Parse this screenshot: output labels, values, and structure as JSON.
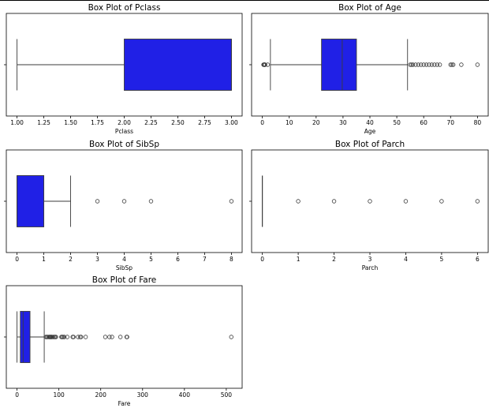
{
  "chart_data": [
    {
      "type": "boxplot",
      "title": "Box Plot of Pclass",
      "xlabel": "Pclass",
      "xlim": [
        0.9,
        3.1
      ],
      "ticks": [
        1.0,
        1.25,
        1.5,
        1.75,
        2.0,
        2.25,
        2.5,
        2.75,
        3.0
      ],
      "tick_labels": [
        "1.00",
        "1.25",
        "1.50",
        "1.75",
        "2.00",
        "2.25",
        "2.50",
        "2.75",
        "3.00"
      ],
      "box": {
        "whisker_low": 1,
        "q1": 2,
        "median": 3,
        "q3": 3,
        "whisker_high": 3
      },
      "outliers": [],
      "box_color": "#2020e6"
    },
    {
      "type": "boxplot",
      "title": "Box Plot of Age",
      "xlabel": "Age",
      "xlim": [
        -4,
        84
      ],
      "ticks": [
        0,
        10,
        20,
        30,
        40,
        50,
        60,
        70,
        80
      ],
      "tick_labels": [
        "0",
        "10",
        "20",
        "30",
        "40",
        "50",
        "60",
        "70",
        "80"
      ],
      "box": {
        "whisker_low": 3,
        "q1": 22,
        "median": 29.7,
        "q3": 35,
        "whisker_high": 54
      },
      "outliers": [
        0.42,
        0.67,
        0.75,
        0.83,
        0.92,
        1,
        2,
        55,
        55.5,
        56,
        57,
        58,
        59,
        60,
        61,
        62,
        63,
        64,
        65,
        66,
        70,
        70.5,
        71,
        74,
        80
      ],
      "box_color": "#2020e6"
    },
    {
      "type": "boxplot",
      "title": "Box Plot of SibSp",
      "xlabel": "SibSp",
      "xlim": [
        -0.4,
        8.4
      ],
      "ticks": [
        0,
        1,
        2,
        3,
        4,
        5,
        6,
        7,
        8
      ],
      "tick_labels": [
        "0",
        "1",
        "2",
        "3",
        "4",
        "5",
        "6",
        "7",
        "8"
      ],
      "box": {
        "whisker_low": 0,
        "q1": 0,
        "median": 0,
        "q3": 1,
        "whisker_high": 2
      },
      "outliers": [
        3,
        4,
        5,
        8
      ],
      "box_color": "#2020e6"
    },
    {
      "type": "boxplot",
      "title": "Box Plot of Parch",
      "xlabel": "Parch",
      "xlim": [
        -0.3,
        6.3
      ],
      "ticks": [
        0,
        1,
        2,
        3,
        4,
        5,
        6
      ],
      "tick_labels": [
        "0",
        "1",
        "2",
        "3",
        "4",
        "5",
        "6"
      ],
      "box": {
        "whisker_low": 0,
        "q1": 0,
        "median": 0,
        "q3": 0,
        "whisker_high": 0
      },
      "outliers": [
        1,
        2,
        3,
        4,
        5,
        6
      ],
      "box_color": "#2020e6"
    },
    {
      "type": "boxplot",
      "title": "Box Plot of Fare",
      "xlabel": "Fare",
      "xlim": [
        -25.6,
        537.9
      ],
      "ticks": [
        0,
        100,
        200,
        300,
        400,
        500
      ],
      "tick_labels": [
        "0",
        "100",
        "200",
        "300",
        "400",
        "500"
      ],
      "box": {
        "whisker_low": 0,
        "q1": 7.9,
        "median": 14.45,
        "q3": 31,
        "whisker_high": 65
      },
      "outliers": [
        69,
        71,
        73,
        76,
        78,
        79,
        80,
        82,
        83,
        86,
        89,
        91,
        93,
        106,
        108,
        110,
        113,
        120,
        133,
        135,
        146,
        151,
        153,
        164,
        211,
        221,
        227,
        247,
        262,
        263,
        512
      ],
      "box_color": "#2020e6"
    }
  ]
}
